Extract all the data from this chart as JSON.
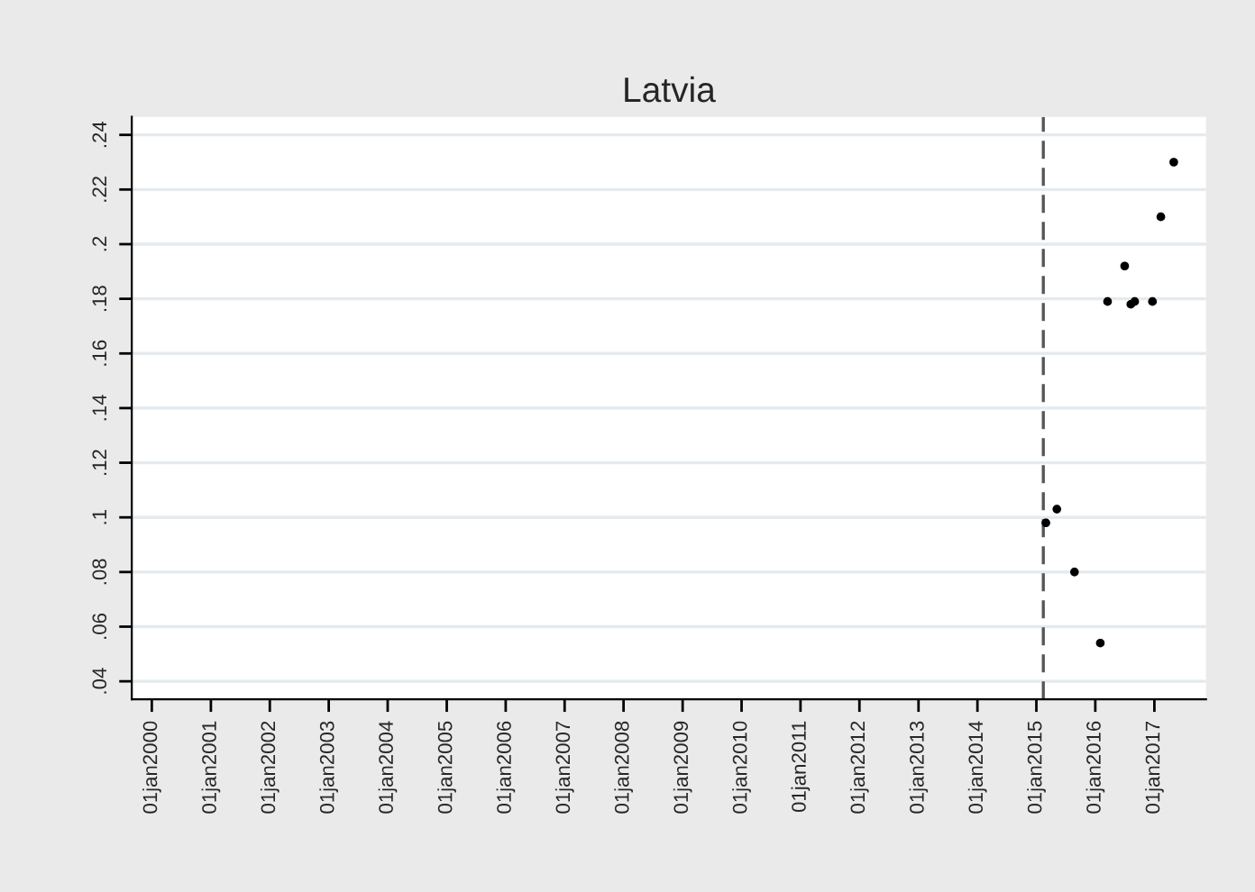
{
  "chart_data": {
    "type": "scatter",
    "title": "Latvia",
    "x": [
      "2015-03-01",
      "2015-05-08",
      "2015-08-25",
      "2016-02-01",
      "2016-03-17",
      "2016-07-01",
      "2016-08-08",
      "2016-09-01",
      "2016-12-20",
      "2017-02-10",
      "2017-05-01"
    ],
    "series": [
      {
        "color": "#000000",
        "values": [
          0.098,
          0.103,
          0.08,
          0.054,
          0.179,
          0.192,
          0.178,
          0.179,
          0.179,
          0.21,
          0.23
        ]
      }
    ],
    "marker": "circle",
    "xlim": [
      "1999-08-30",
      "2017-11-17"
    ],
    "xticks": [
      {
        "value": "2000-01-01",
        "label": "01jan2000"
      },
      {
        "value": "2001-01-01",
        "label": "01jan2001"
      },
      {
        "value": "2002-01-01",
        "label": "01jan2002"
      },
      {
        "value": "2003-01-01",
        "label": "01jan2003"
      },
      {
        "value": "2004-01-01",
        "label": "01jan2004"
      },
      {
        "value": "2005-01-01",
        "label": "01jan2005"
      },
      {
        "value": "2006-01-01",
        "label": "01jan2006"
      },
      {
        "value": "2007-01-01",
        "label": "01jan2007"
      },
      {
        "value": "2008-01-01",
        "label": "01jan2008"
      },
      {
        "value": "2009-01-01",
        "label": "01jan2009"
      },
      {
        "value": "2010-01-01",
        "label": "01jan2010"
      },
      {
        "value": "2011-01-01",
        "label": "01jan2011"
      },
      {
        "value": "2012-01-01",
        "label": "01jan2012"
      },
      {
        "value": "2013-01-01",
        "label": "01jan2013"
      },
      {
        "value": "2014-01-01",
        "label": "01jan2014"
      },
      {
        "value": "2015-01-01",
        "label": "01jan2015"
      },
      {
        "value": "2016-01-01",
        "label": "01jan2016"
      },
      {
        "value": "2017-01-01",
        "label": "01jan2017"
      }
    ],
    "ylim": [
      0.0334,
      0.2466
    ],
    "yticks": [
      {
        "value": 0.04,
        "label": ".04"
      },
      {
        "value": 0.06,
        "label": ".06"
      },
      {
        "value": 0.08,
        "label": ".08"
      },
      {
        "value": 0.1,
        "label": ".1"
      },
      {
        "value": 0.12,
        "label": ".12"
      },
      {
        "value": 0.14,
        "label": ".14"
      },
      {
        "value": 0.16,
        "label": ".16"
      },
      {
        "value": 0.18,
        "label": ".18"
      },
      {
        "value": 0.2,
        "label": ".2"
      },
      {
        "value": 0.22,
        "label": ".22"
      },
      {
        "value": 0.24,
        "label": ".24"
      }
    ],
    "grid": "y",
    "ref_lines": [
      {
        "axis": "x",
        "value": "2015-02-13",
        "color": "#555555",
        "line_style": "dashed"
      }
    ]
  }
}
